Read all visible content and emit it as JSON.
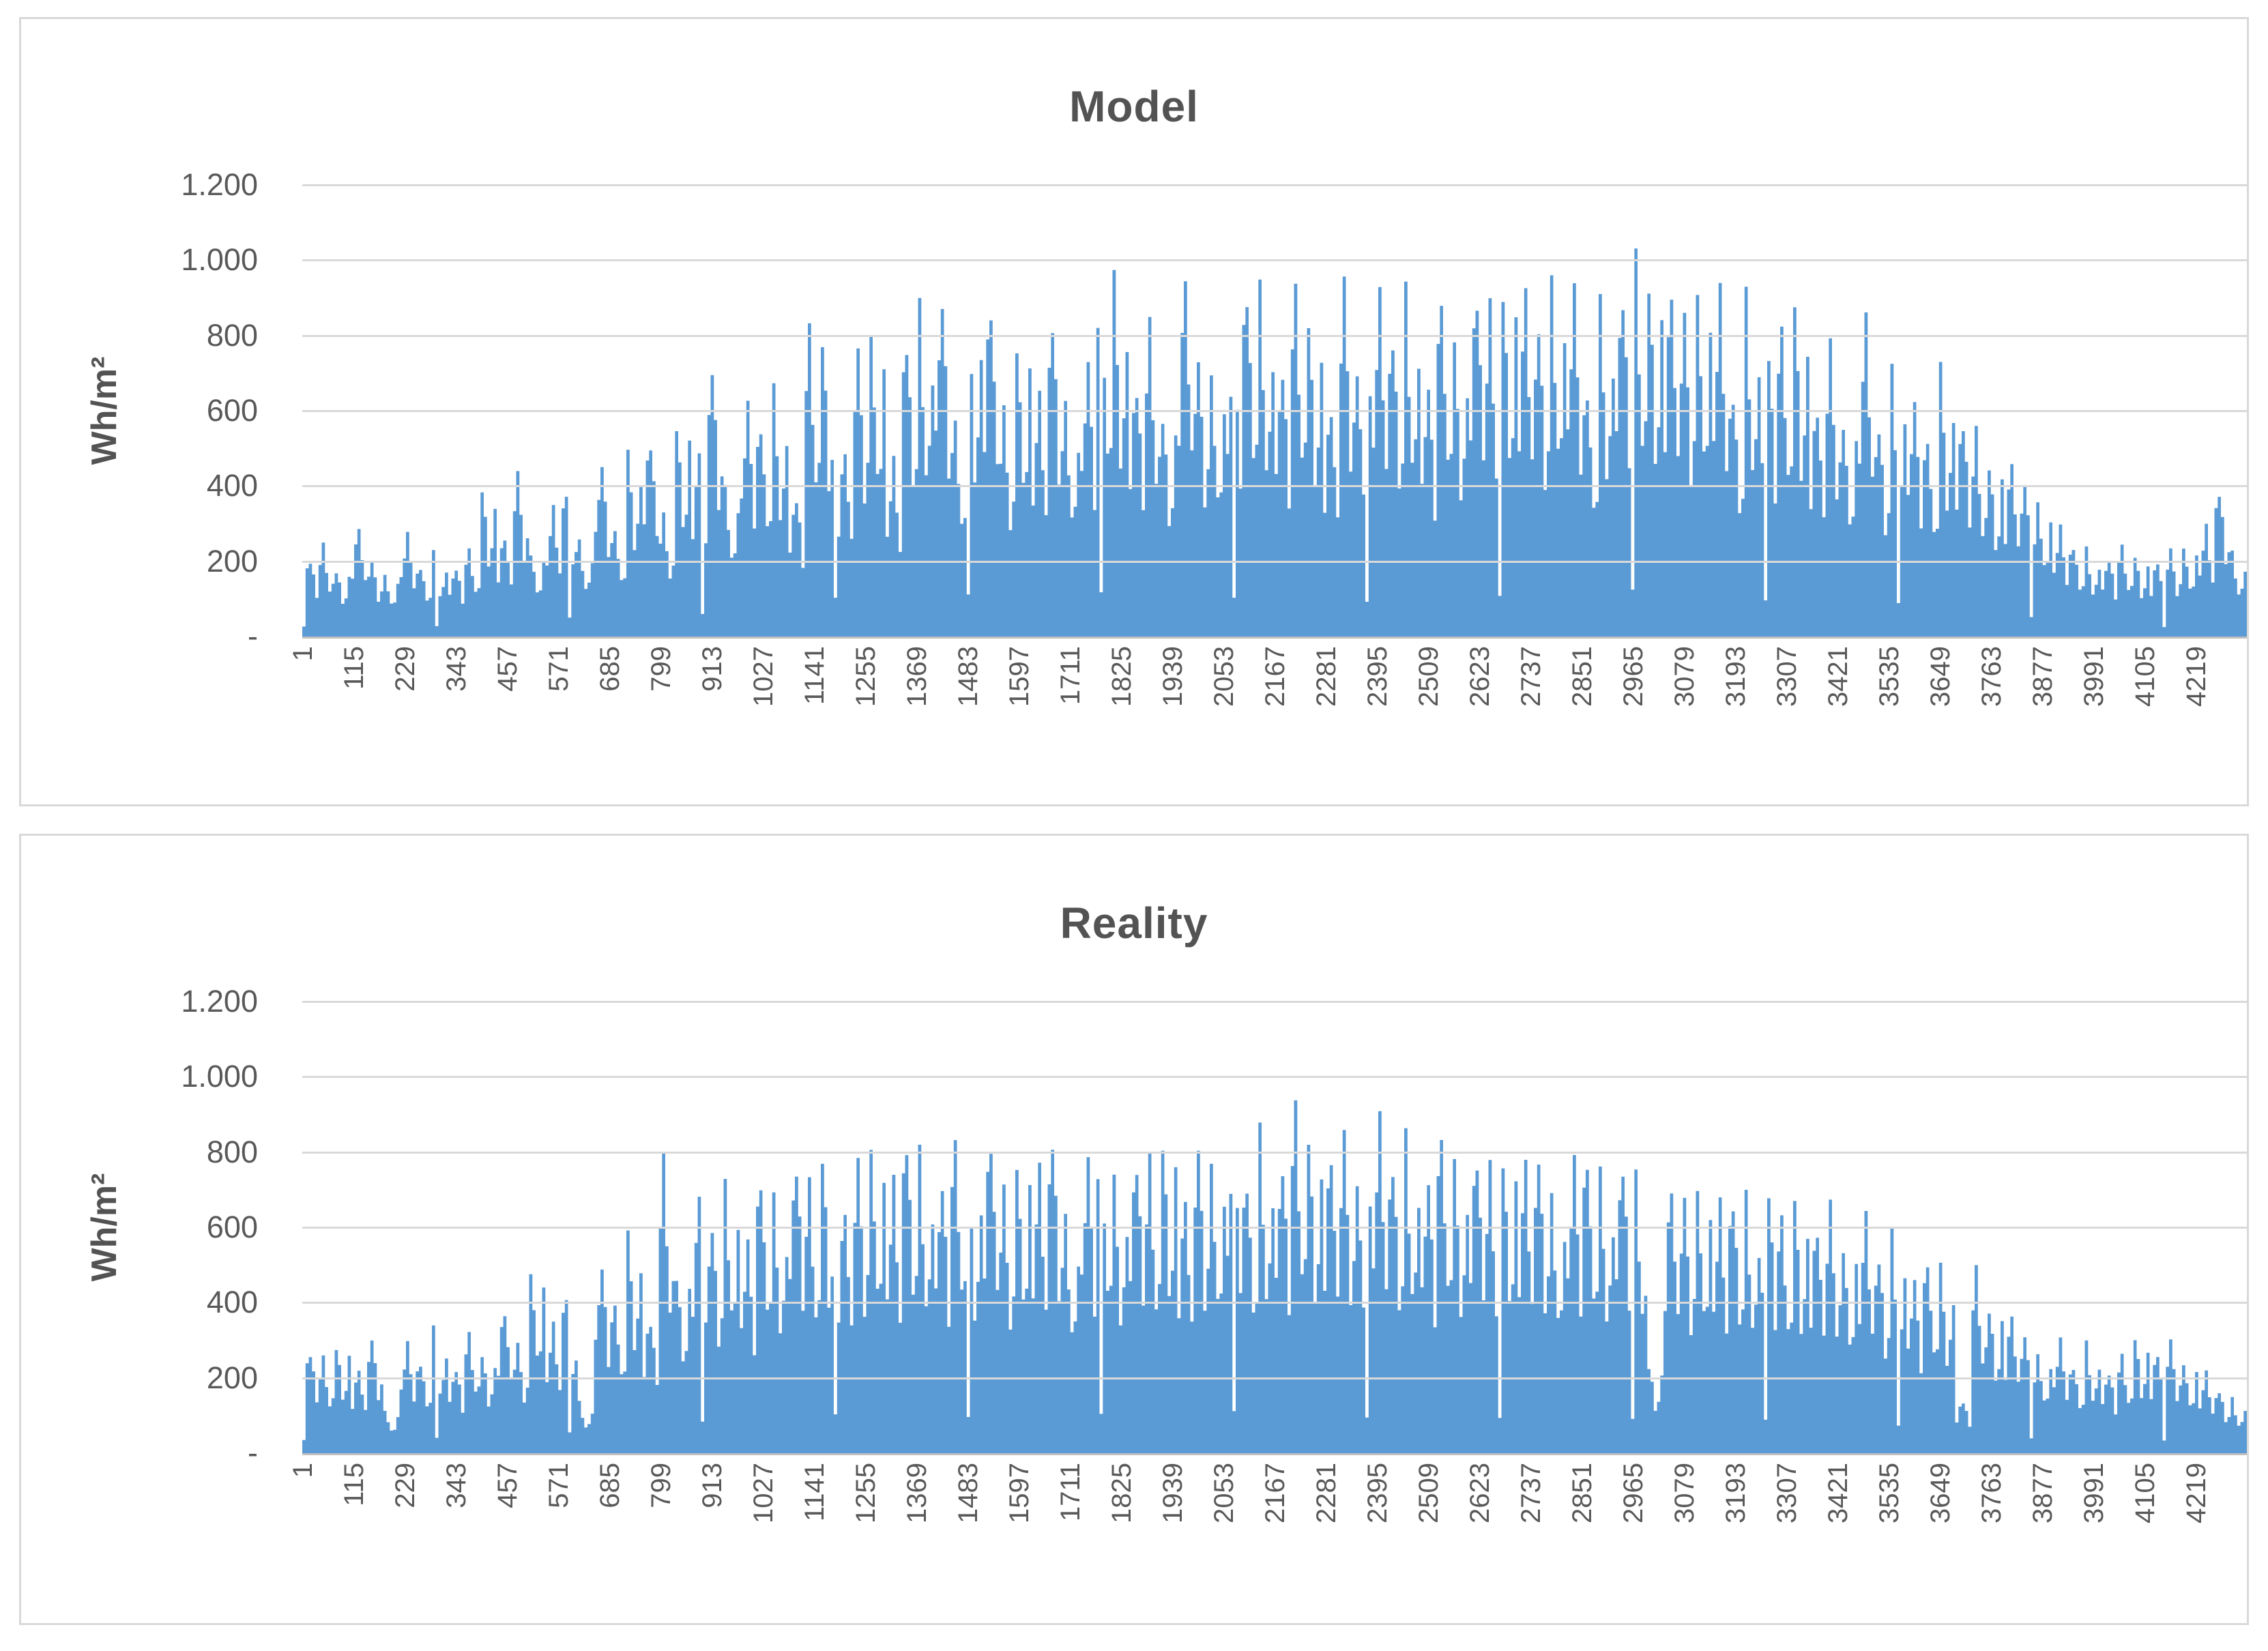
{
  "style": {
    "bar_color": "#5B9BD5",
    "grid_color": "#D9D9D9",
    "axis_color": "#BFBFBF",
    "tick_text_color": "#595959",
    "title_color": "#535353",
    "card_border_color": "#D9D9D9",
    "background_color": "#FFFFFF"
  },
  "chart_data": [
    {
      "type": "bar",
      "title": "Model",
      "ylabel": "Wh/m²",
      "ylim": [
        0,
        1200
      ],
      "y_tick_labels": [
        "1.200",
        "1.000",
        "800",
        "600",
        "400",
        "200",
        "-"
      ],
      "x_first": 1,
      "x_tick_step": 114,
      "x_count": 4332,
      "x_tick_labels": [
        "1",
        "115",
        "229",
        "343",
        "457",
        "571",
        "685",
        "799",
        "913",
        "1027",
        "1141",
        "1255",
        "1369",
        "1483",
        "1597",
        "1711",
        "1825",
        "1939",
        "2053",
        "2167",
        "2281",
        "2395",
        "2509",
        "2623",
        "2737",
        "2851",
        "2965",
        "3079",
        "3193",
        "3307",
        "3421",
        "3535",
        "3649",
        "3763",
        "3877",
        "3991",
        "4105",
        "4219"
      ],
      "grid": true,
      "legend": "none",
      "values_sample_step": 36,
      "values_note": "peak envelope (Wh/m²) sampled every ~36 categories, read from chart",
      "values": [
        220,
        250,
        190,
        300,
        210,
        175,
        280,
        200,
        230,
        195,
        240,
        420,
        280,
        450,
        240,
        350,
        420,
        260,
        480,
        300,
        520,
        560,
        330,
        620,
        500,
        760,
        420,
        640,
        600,
        680,
        400,
        840,
        860,
        520,
        800,
        870,
        480,
        850,
        900,
        950,
        600,
        930,
        940,
        620,
        850,
        660,
        900,
        640,
        760,
        980,
        1000,
        720,
        850,
        640,
        990,
        780,
        740,
        860,
        990,
        950,
        760,
        960,
        900,
        640,
        980,
        770,
        930,
        860,
        950,
        700,
        940,
        820,
        980,
        900,
        1010,
        950,
        880,
        1000,
        960,
        700,
        920,
        980,
        1040,
        1020,
        960,
        900,
        990,
        940,
        700,
        930,
        800,
        860,
        940,
        650,
        800,
        620,
        870,
        600,
        740,
        650,
        560,
        750,
        620,
        560,
        500,
        480,
        430,
        380,
        300,
        260,
        240,
        220,
        250,
        230,
        210,
        240,
        260,
        300,
        420,
        230
      ]
    },
    {
      "type": "bar",
      "title": "Reality",
      "ylabel": "Wh/m²",
      "ylim": [
        0,
        1200
      ],
      "y_tick_labels": [
        "1.200",
        "1.000",
        "800",
        "600",
        "400",
        "200",
        "-"
      ],
      "x_first": 1,
      "x_tick_step": 114,
      "x_count": 4332,
      "x_tick_labels": [
        "1",
        "115",
        "229",
        "343",
        "457",
        "571",
        "685",
        "799",
        "913",
        "1027",
        "1141",
        "1255",
        "1369",
        "1483",
        "1597",
        "1711",
        "1825",
        "1939",
        "2053",
        "2167",
        "2281",
        "2395",
        "2509",
        "2623",
        "2737",
        "2851",
        "2965",
        "3079",
        "3193",
        "3307",
        "3421",
        "3535",
        "3649",
        "3763",
        "3877",
        "3991",
        "4105",
        "4219"
      ],
      "grid": true,
      "legend": "none",
      "values_sample_step": 36,
      "values_note": "peak envelope (Wh/m²) sampled every ~36 categories, read from chart",
      "values": [
        290,
        260,
        310,
        230,
        320,
        120,
        300,
        260,
        340,
        240,
        330,
        280,
        400,
        300,
        530,
        350,
        460,
        140,
        520,
        420,
        620,
        380,
        800,
        520,
        700,
        640,
        760,
        580,
        780,
        700,
        830,
        740,
        860,
        680,
        820,
        880,
        740,
        900,
        820,
        760,
        870,
        800,
        890,
        720,
        850,
        780,
        900,
        650,
        820,
        870,
        760,
        840,
        800,
        910,
        700,
        860,
        820,
        930,
        780,
        880,
        820,
        960,
        900,
        840,
        880,
        790,
        910,
        830,
        870,
        760,
        890,
        820,
        850,
        780,
        860,
        800,
        840,
        720,
        810,
        840,
        770,
        830,
        760,
        250,
        740,
        710,
        760,
        680,
        730,
        700,
        740,
        660,
        720,
        640,
        680,
        600,
        650,
        560,
        610,
        480,
        540,
        520,
        150,
        500,
        420,
        380,
        330,
        280,
        310,
        250,
        300,
        230,
        270,
        330,
        280,
        310,
        260,
        220,
        180,
        150
      ]
    }
  ]
}
